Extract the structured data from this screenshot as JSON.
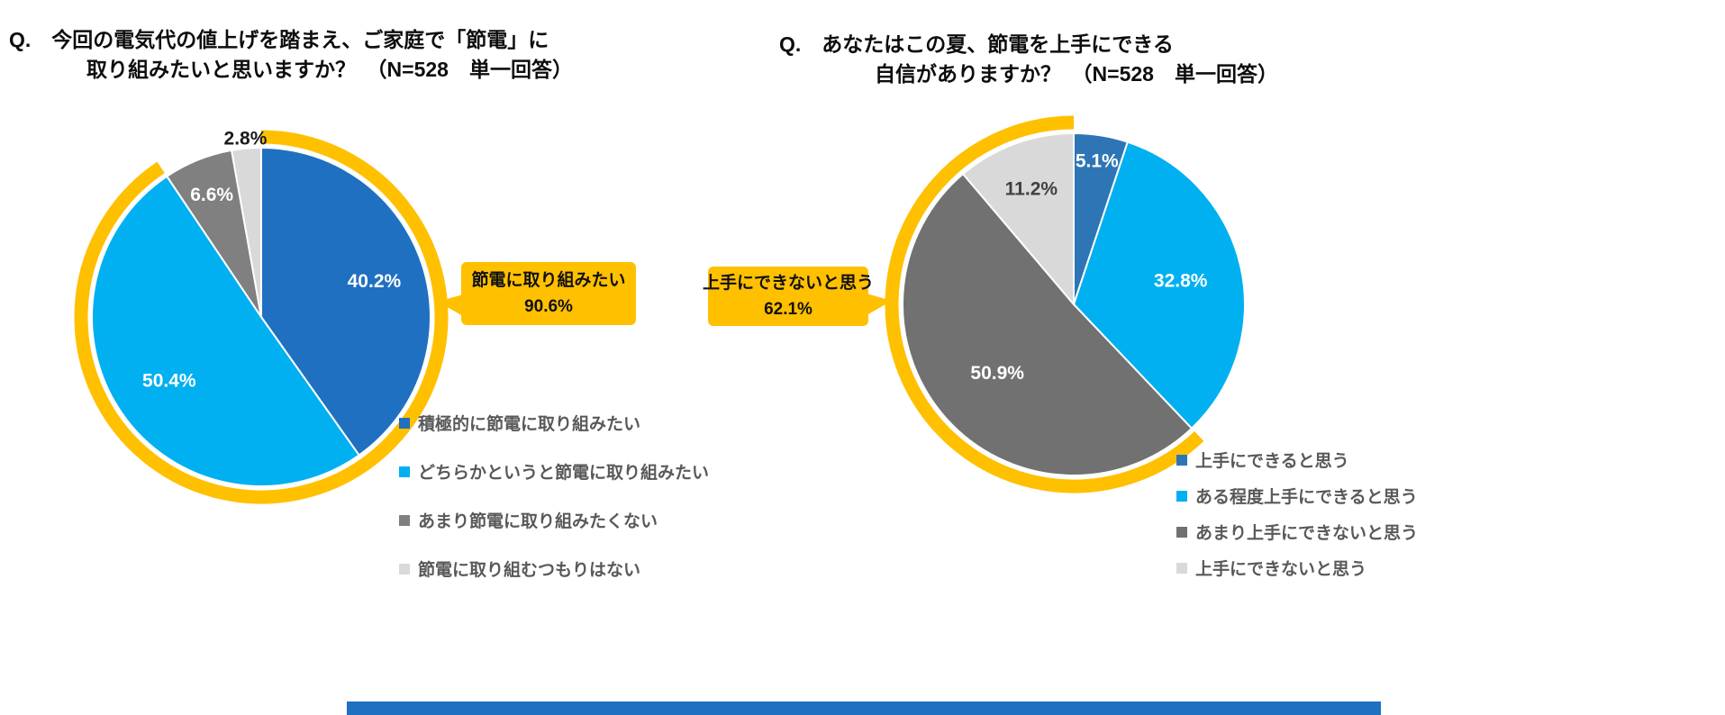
{
  "page": {
    "background": "#ffffff"
  },
  "footer": {
    "color": "#1F70C1"
  },
  "chart_data": [
    {
      "type": "pie",
      "title_lines": [
        "Q.　今回の電気代の値上げを踏まえ、ご家庭で「節電」に",
        "取り組みたいと思いますか？　（N=528　単一回答）"
      ],
      "labels": [
        "積極的に節電に取り組みたい",
        "どちらかというと節電に取り組みたい",
        "あまり節電に取り組みたくない",
        "節電に取り組むつもりはない"
      ],
      "values": [
        40.2,
        50.4,
        6.6,
        2.8
      ],
      "value_labels": [
        "40.2%",
        "50.4%",
        "6.6%",
        "2.8%"
      ],
      "colors": [
        "#1F70C1",
        "#00B0F0",
        "#808080",
        "#D9D9D9"
      ],
      "start_pct": 0,
      "legend_position": "bottom-right",
      "label_layout": [
        {
          "r": 0.7,
          "color": "#ffffff"
        },
        {
          "r": 0.66,
          "color": "#ffffff"
        },
        {
          "r": 0.78,
          "color": "#ffffff"
        },
        {
          "r": 1.06,
          "color": "#1a1a1a"
        }
      ],
      "highlight": {
        "label": "節電に取り組みたい",
        "value_text": "90.6%",
        "value": 90.6,
        "from_pct": 0,
        "to_pct": 90.6,
        "color": "#FFC000"
      }
    },
    {
      "type": "pie",
      "title_lines": [
        "Q.　あなたはこの夏、節電を上手にできる",
        "自信がありますか？　（N=528　単一回答）"
      ],
      "labels": [
        "上手にできると思う",
        "ある程度上手にできると思う",
        "あまり上手にできないと思う",
        "上手にできないと思う"
      ],
      "values": [
        5.1,
        32.8,
        50.9,
        11.2
      ],
      "value_labels": [
        "5.1%",
        "32.8%",
        "50.9%",
        "11.2%"
      ],
      "colors": [
        "#2E75B6",
        "#00B0F0",
        "#717171",
        "#D9D9D9"
      ],
      "start_pct": 0,
      "legend_position": "bottom-right",
      "label_layout": [
        {
          "r": 0.85,
          "color": "#ffffff"
        },
        {
          "r": 0.64,
          "color": "#ffffff"
        },
        {
          "r": 0.6,
          "color": "#ffffff"
        },
        {
          "r": 0.72,
          "color": "#404040"
        }
      ],
      "highlight": {
        "label": "上手にできないと思う",
        "value_text": "62.1%",
        "value": 62.1,
        "from_pct": 37.9,
        "to_pct": 100,
        "color": "#FFC000"
      }
    }
  ]
}
